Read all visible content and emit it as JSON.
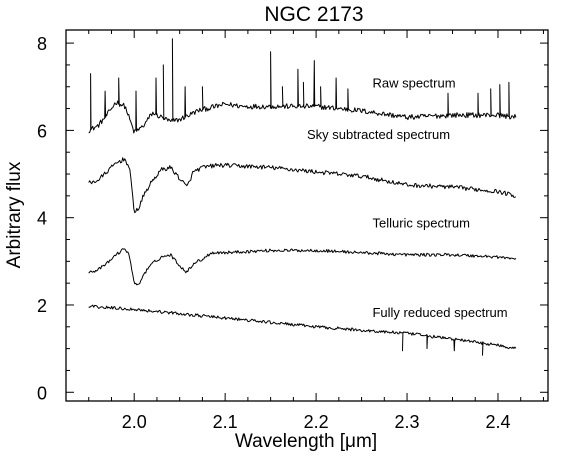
{
  "chart_data": {
    "type": "line",
    "title": "NGC 2173",
    "xlabel": "Wavelength [μm]",
    "ylabel": "Arbitrary flux",
    "xlim": [
      1.925,
      2.455
    ],
    "ylim": [
      -0.2,
      8.3
    ],
    "xticks": [
      2.0,
      2.1,
      2.2,
      2.3,
      2.4
    ],
    "xtick_labels": [
      "2.0",
      "2.1",
      "2.2",
      "2.3",
      "2.4"
    ],
    "yticks": [
      0,
      2,
      4,
      6,
      8
    ],
    "ytick_labels": [
      "0",
      "2",
      "4",
      "6",
      "8"
    ],
    "grid": false,
    "line_color": "#000000",
    "series": [
      {
        "name": "Raw spectrum",
        "x": [
          1.95,
          1.96,
          1.97,
          1.98,
          1.99,
          2.0,
          2.01,
          2.02,
          2.03,
          2.04,
          2.05,
          2.06,
          2.07,
          2.08,
          2.1,
          2.12,
          2.15,
          2.2,
          2.25,
          2.3,
          2.35,
          2.4,
          2.42
        ],
        "y": [
          6.0,
          6.1,
          6.35,
          6.65,
          6.55,
          5.95,
          6.1,
          6.4,
          6.3,
          6.2,
          6.25,
          6.35,
          6.45,
          6.5,
          6.6,
          6.55,
          6.55,
          6.55,
          6.45,
          6.3,
          6.35,
          6.35,
          6.3
        ],
        "spikes": [
          {
            "x": 1.952,
            "y": 7.3
          },
          {
            "x": 1.968,
            "y": 6.9
          },
          {
            "x": 1.983,
            "y": 7.2
          },
          {
            "x": 2.002,
            "y": 6.9
          },
          {
            "x": 2.024,
            "y": 7.2
          },
          {
            "x": 2.032,
            "y": 7.5
          },
          {
            "x": 2.042,
            "y": 8.1
          },
          {
            "x": 2.056,
            "y": 7.0
          },
          {
            "x": 2.075,
            "y": 7.0
          },
          {
            "x": 2.15,
            "y": 7.8
          },
          {
            "x": 2.163,
            "y": 7.0
          },
          {
            "x": 2.18,
            "y": 7.4
          },
          {
            "x": 2.186,
            "y": 7.1
          },
          {
            "x": 2.198,
            "y": 7.6
          },
          {
            "x": 2.205,
            "y": 7.0
          },
          {
            "x": 2.222,
            "y": 7.2
          },
          {
            "x": 2.235,
            "y": 6.95
          },
          {
            "x": 2.345,
            "y": 6.85
          },
          {
            "x": 2.378,
            "y": 6.85
          },
          {
            "x": 2.392,
            "y": 6.95
          },
          {
            "x": 2.402,
            "y": 7.05
          },
          {
            "x": 2.412,
            "y": 7.1
          }
        ]
      },
      {
        "name": "Sky subtracted spectrum",
        "x": [
          1.95,
          1.96,
          1.97,
          1.98,
          1.99,
          1.995,
          2.0,
          2.005,
          2.01,
          2.02,
          2.03,
          2.04,
          2.05,
          2.058,
          2.065,
          2.075,
          2.09,
          2.1,
          2.15,
          2.2,
          2.25,
          2.3,
          2.35,
          2.4,
          2.42
        ],
        "y": [
          4.8,
          4.85,
          5.05,
          5.25,
          5.35,
          5.1,
          4.15,
          4.2,
          4.5,
          4.85,
          5.1,
          5.15,
          4.9,
          4.7,
          5.05,
          5.15,
          5.2,
          5.2,
          5.15,
          5.05,
          4.95,
          4.75,
          4.7,
          4.6,
          4.5
        ]
      },
      {
        "name": "Telluric spectrum",
        "x": [
          1.95,
          1.96,
          1.97,
          1.98,
          1.99,
          1.995,
          2.0,
          2.005,
          2.01,
          2.02,
          2.03,
          2.04,
          2.05,
          2.058,
          2.065,
          2.075,
          2.085,
          2.1,
          2.15,
          2.2,
          2.25,
          2.3,
          2.35,
          2.4,
          2.42
        ],
        "y": [
          2.75,
          2.8,
          2.95,
          3.15,
          3.3,
          3.1,
          2.5,
          2.45,
          2.7,
          2.95,
          3.1,
          3.15,
          2.9,
          2.75,
          2.95,
          3.05,
          3.2,
          3.2,
          3.25,
          3.25,
          3.2,
          3.15,
          3.15,
          3.1,
          3.05
        ]
      },
      {
        "name": "Fully reduced spectrum",
        "x": [
          1.95,
          2.0,
          2.05,
          2.1,
          2.15,
          2.2,
          2.25,
          2.3,
          2.35,
          2.4,
          2.42
        ],
        "y": [
          1.97,
          1.9,
          1.8,
          1.7,
          1.6,
          1.5,
          1.42,
          1.35,
          1.22,
          1.08,
          1.0
        ],
        "dips": [
          {
            "x": 2.295,
            "y": 0.95
          },
          {
            "x": 2.322,
            "y": 1.0
          },
          {
            "x": 2.352,
            "y": 0.95
          },
          {
            "x": 2.383,
            "y": 0.85
          }
        ]
      }
    ],
    "annotations": [
      {
        "text": "Raw spectrum",
        "x": 2.262,
        "y": 6.98
      },
      {
        "text": "Sky subtracted spectrum",
        "x": 2.19,
        "y": 5.8
      },
      {
        "text": "Telluric spectrum",
        "x": 2.262,
        "y": 3.78
      },
      {
        "text": "Fully reduced spectrum",
        "x": 2.262,
        "y": 1.73
      }
    ]
  }
}
